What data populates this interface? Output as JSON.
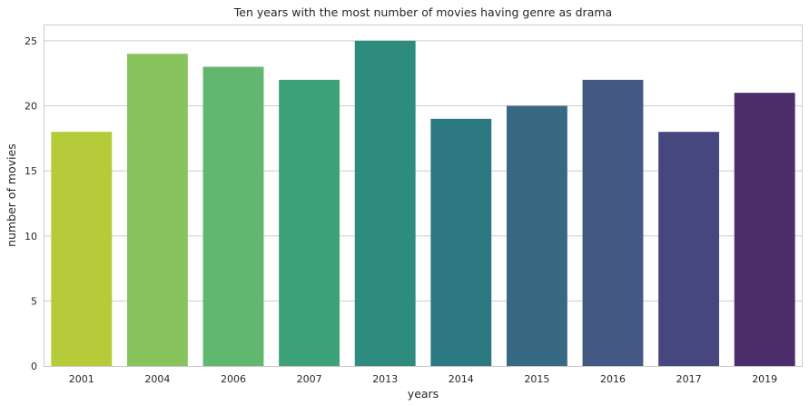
{
  "chart_data": {
    "type": "bar",
    "title": "Ten years with the most number of movies having genre as drama",
    "xlabel": "years",
    "ylabel": "number of movies",
    "categories": [
      "2001",
      "2004",
      "2006",
      "2007",
      "2013",
      "2014",
      "2015",
      "2016",
      "2017",
      "2019"
    ],
    "values": [
      18,
      24,
      23,
      22,
      25,
      19,
      20,
      22,
      18,
      21
    ],
    "colors": [
      "#b5cb39",
      "#89c35e",
      "#61b670",
      "#3da277",
      "#2e8c7e",
      "#2c7880",
      "#376a82",
      "#435984",
      "#474780",
      "#4b2d6a"
    ],
    "ylim": [
      0,
      26.25
    ],
    "yticks": [
      0,
      5,
      10,
      15,
      20,
      25
    ],
    "grid": true,
    "grid_axis": "y",
    "legend": "none"
  }
}
